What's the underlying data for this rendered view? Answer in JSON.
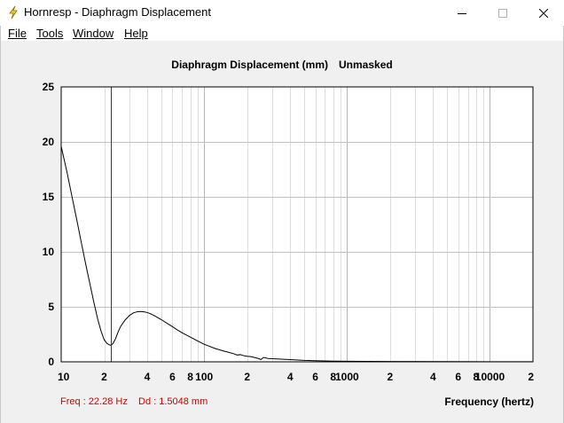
{
  "window": {
    "title": "Hornresp - Diaphragm Displacement",
    "minimize_icon": "minimize-icon",
    "maximize_icon": "maximize-icon",
    "close_icon": "close-icon"
  },
  "menu": {
    "items": [
      {
        "label": "File"
      },
      {
        "label": "Tools"
      },
      {
        "label": "Window"
      },
      {
        "label": "Help"
      }
    ]
  },
  "chart_data": {
    "type": "line",
    "title": "Diaphragm Displacement (mm)",
    "subtitle": "Unmasked",
    "xlabel": "Frequency (hertz)",
    "ylabel": "",
    "x_scale": "log",
    "xlim": [
      10,
      20000
    ],
    "ylim": [
      0,
      25
    ],
    "grid": true,
    "y_ticks": [
      0,
      5,
      10,
      15,
      20,
      25
    ],
    "x_tick_labels": [
      {
        "value": 10,
        "label": "10"
      },
      {
        "value": 20,
        "label": "2"
      },
      {
        "value": 40,
        "label": "4"
      },
      {
        "value": 60,
        "label": "6"
      },
      {
        "value": 80,
        "label": "8"
      },
      {
        "value": 100,
        "label": "100"
      },
      {
        "value": 200,
        "label": "2"
      },
      {
        "value": 400,
        "label": "4"
      },
      {
        "value": 600,
        "label": "6"
      },
      {
        "value": 800,
        "label": "8"
      },
      {
        "value": 1000,
        "label": "1000"
      },
      {
        "value": 2000,
        "label": "2"
      },
      {
        "value": 4000,
        "label": "4"
      },
      {
        "value": 6000,
        "label": "6"
      },
      {
        "value": 8000,
        "label": "8"
      },
      {
        "value": 10000,
        "label": "10000"
      },
      {
        "value": 20000,
        "label": "2"
      }
    ],
    "series": [
      {
        "color": "#000000",
        "x": [
          10,
          11,
          12,
          13,
          14,
          15,
          16,
          17,
          18,
          19,
          20,
          21,
          22,
          22.28,
          23,
          24,
          25,
          26,
          28,
          30,
          32,
          34,
          36,
          38,
          40,
          42,
          44,
          46,
          48,
          50,
          55,
          60,
          65,
          70,
          80,
          90,
          100,
          120,
          140,
          150,
          160,
          170,
          180,
          190,
          200,
          210,
          220,
          240,
          250,
          260,
          280,
          300,
          400,
          500,
          600,
          700,
          800,
          1000,
          2000,
          5000,
          10000,
          20000
        ],
        "y": [
          19.6,
          17.2,
          14.8,
          12.6,
          10.5,
          8.6,
          6.9,
          5.3,
          3.9,
          2.8,
          2.0,
          1.65,
          1.52,
          1.5,
          1.65,
          2.1,
          2.7,
          3.2,
          3.8,
          4.2,
          4.45,
          4.55,
          4.58,
          4.55,
          4.48,
          4.38,
          4.25,
          4.12,
          3.98,
          3.85,
          3.5,
          3.2,
          2.9,
          2.65,
          2.25,
          1.9,
          1.6,
          1.2,
          0.95,
          0.85,
          0.75,
          0.62,
          0.65,
          0.55,
          0.5,
          0.48,
          0.42,
          0.3,
          0.2,
          0.4,
          0.3,
          0.28,
          0.2,
          0.13,
          0.1,
          0.08,
          0.06,
          0.05,
          0.03,
          0.02,
          0.01,
          0.01
        ]
      }
    ],
    "marker": {
      "x": 22.28,
      "color": "#cc0000"
    }
  },
  "status": {
    "freq": "Freq : 22.28 Hz",
    "dd": "Dd : 1.5048 mm"
  }
}
